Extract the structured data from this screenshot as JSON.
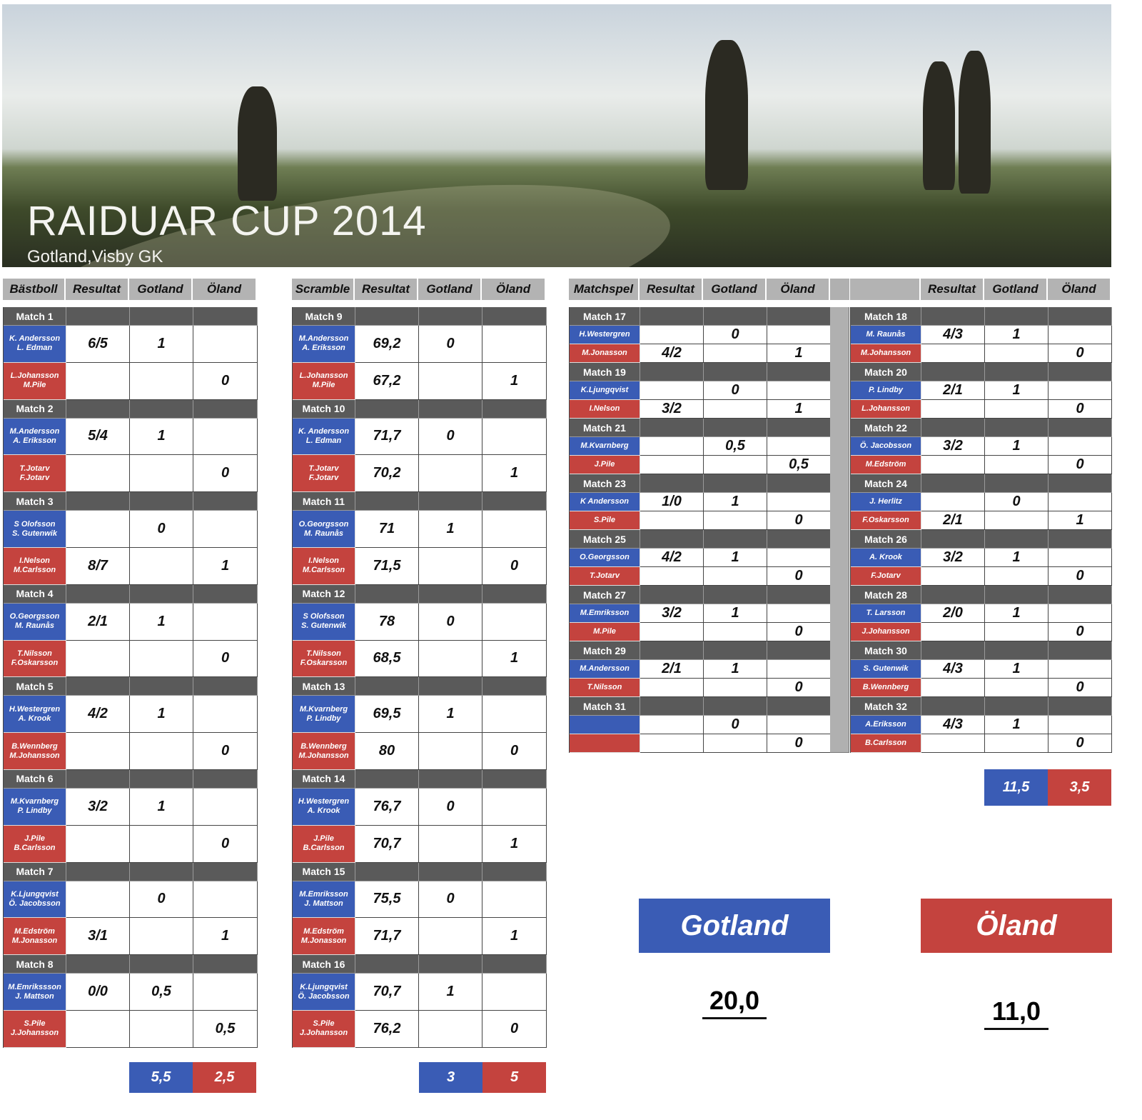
{
  "header": {
    "title": "RAIDUAR CUP 2014",
    "subtitle": "Gotland,Visby GK"
  },
  "colors": {
    "gotland": "#3a5cb5",
    "oland": "#c4433e",
    "match_header": "#5a5a5a",
    "column_header": "#b3b3b3"
  },
  "tables": [
    {
      "columns": [
        "Bästboll",
        "Resultat",
        "Gotland",
        "Öland"
      ],
      "totals": {
        "gotland": "5,5",
        "oland": "2,5"
      },
      "matches": [
        {
          "label": "Match 1",
          "blue": {
            "names": [
              "K. Andersson",
              "L. Edman"
            ],
            "res": "6/5",
            "g": "1",
            "o": ""
          },
          "red": {
            "names": [
              "L.Johansson",
              "M.Pile"
            ],
            "res": "",
            "g": "",
            "o": "0"
          }
        },
        {
          "label": "Match 2",
          "blue": {
            "names": [
              "M.Andersson",
              "A. Eriksson"
            ],
            "res": "5/4",
            "g": "1",
            "o": ""
          },
          "red": {
            "names": [
              "T.Jotarv",
              "F.Jotarv"
            ],
            "res": "",
            "g": "",
            "o": "0"
          }
        },
        {
          "label": "Match 3",
          "blue": {
            "names": [
              "S Olofsson",
              "S. Gutenwik"
            ],
            "res": "",
            "g": "0",
            "o": ""
          },
          "red": {
            "names": [
              "I.Nelson",
              "M.Carlsson"
            ],
            "res": "8/7",
            "g": "",
            "o": "1"
          }
        },
        {
          "label": "Match 4",
          "blue": {
            "names": [
              "O.Georgsson",
              "M. Raunås"
            ],
            "res": "2/1",
            "g": "1",
            "o": ""
          },
          "red": {
            "names": [
              "T.Nilsson",
              "F.Oskarsson"
            ],
            "res": "",
            "g": "",
            "o": "0"
          }
        },
        {
          "label": "Match 5",
          "blue": {
            "names": [
              "H.Westergren",
              "A. Krook"
            ],
            "res": "4/2",
            "g": "1",
            "o": ""
          },
          "red": {
            "names": [
              "B.Wennberg",
              "M.Johansson"
            ],
            "res": "",
            "g": "",
            "o": "0"
          }
        },
        {
          "label": "Match 6",
          "blue": {
            "names": [
              "M.Kvarnberg",
              "P. Lindby"
            ],
            "res": "3/2",
            "g": "1",
            "o": ""
          },
          "red": {
            "names": [
              "J.Pile",
              "B.Carlsson"
            ],
            "res": "",
            "g": "",
            "o": "0"
          }
        },
        {
          "label": "Match 7",
          "blue": {
            "names": [
              "K.Ljungqvist",
              "Ö. Jacobsson"
            ],
            "res": "",
            "g": "0",
            "o": ""
          },
          "red": {
            "names": [
              "M.Edström",
              "M.Jonasson"
            ],
            "res": "3/1",
            "g": "",
            "o": "1"
          }
        },
        {
          "label": "Match 8",
          "blue": {
            "names": [
              "M.Emrikssson",
              "J. Mattson"
            ],
            "res": "0/0",
            "g": "0,5",
            "o": ""
          },
          "red": {
            "names": [
              "S.Pile",
              "J.Johansson"
            ],
            "res": "",
            "g": "",
            "o": "0,5"
          }
        }
      ]
    },
    {
      "columns": [
        "Scramble",
        "Resultat",
        "Gotland",
        "Öland"
      ],
      "totals": {
        "gotland": "3",
        "oland": "5"
      },
      "matches": [
        {
          "label": "Match 9",
          "blue": {
            "names": [
              "M.Andersson",
              "A. Eriksson"
            ],
            "res": "69,2",
            "g": "0",
            "o": ""
          },
          "red": {
            "names": [
              "L.Johansson",
              "M.Pile"
            ],
            "res": "67,2",
            "g": "",
            "o": "1"
          }
        },
        {
          "label": "Match 10",
          "blue": {
            "names": [
              "K. Andersson",
              "L. Edman"
            ],
            "res": "71,7",
            "g": "0",
            "o": ""
          },
          "red": {
            "names": [
              "T.Jotarv",
              "F.Jotarv"
            ],
            "res": "70,2",
            "g": "",
            "o": "1"
          }
        },
        {
          "label": "Match 11",
          "blue": {
            "names": [
              "O.Georgsson",
              "M. Raunås"
            ],
            "res": "71",
            "g": "1",
            "o": ""
          },
          "red": {
            "names": [
              "I.Nelson",
              "M.Carlsson"
            ],
            "res": "71,5",
            "g": "",
            "o": "0"
          }
        },
        {
          "label": "Match 12",
          "blue": {
            "names": [
              "S Olofsson",
              "S. Gutenwik"
            ],
            "res": "78",
            "g": "0",
            "o": ""
          },
          "red": {
            "names": [
              "T.Nilsson",
              "F.Oskarsson"
            ],
            "res": "68,5",
            "g": "",
            "o": "1"
          }
        },
        {
          "label": "Match 13",
          "blue": {
            "names": [
              "M.Kvarnberg",
              "P. Lindby"
            ],
            "res": "69,5",
            "g": "1",
            "o": ""
          },
          "red": {
            "names": [
              "B.Wennberg",
              "M.Johansson"
            ],
            "res": "80",
            "g": "",
            "o": "0"
          }
        },
        {
          "label": "Match 14",
          "blue": {
            "names": [
              "H.Westergren",
              "A. Krook"
            ],
            "res": "76,7",
            "g": "0",
            "o": ""
          },
          "red": {
            "names": [
              "J.Pile",
              "B.Carlsson"
            ],
            "res": "70,7",
            "g": "",
            "o": "1"
          }
        },
        {
          "label": "Match 15",
          "blue": {
            "names": [
              "M.Emriksson",
              "J. Mattson"
            ],
            "res": "75,5",
            "g": "0",
            "o": ""
          },
          "red": {
            "names": [
              "M.Edström",
              "M.Jonasson"
            ],
            "res": "71,7",
            "g": "",
            "o": "1"
          }
        },
        {
          "label": "Match 16",
          "blue": {
            "names": [
              "K.Ljungqvist",
              "Ö. Jacobsson"
            ],
            "res": "70,7",
            "g": "1",
            "o": ""
          },
          "red": {
            "names": [
              "S.Pile",
              "J.Johansson"
            ],
            "res": "76,2",
            "g": "",
            "o": "0"
          }
        }
      ]
    },
    {
      "columns": [
        "Matchspel",
        "Resultat",
        "Gotland",
        "Öland"
      ],
      "matches": [
        {
          "label": "Match 17",
          "blue": {
            "names": [
              "H.Westergren"
            ],
            "res": "",
            "g": "0",
            "o": ""
          },
          "red": {
            "names": [
              "M.Jonasson"
            ],
            "res": "4/2",
            "g": "",
            "o": "1"
          }
        },
        {
          "label": "Match 19",
          "blue": {
            "names": [
              "K.Ljungqvist"
            ],
            "res": "",
            "g": "0",
            "o": ""
          },
          "red": {
            "names": [
              "I.Nelson"
            ],
            "res": "3/2",
            "g": "",
            "o": "1"
          }
        },
        {
          "label": "Match 21",
          "blue": {
            "names": [
              "M.Kvarnberg"
            ],
            "res": "",
            "g": "0,5",
            "o": ""
          },
          "red": {
            "names": [
              "J.Pile"
            ],
            "res": "",
            "g": "",
            "o": "0,5"
          }
        },
        {
          "label": "Match 23",
          "blue": {
            "names": [
              "K Andersson"
            ],
            "res": "1/0",
            "g": "1",
            "o": ""
          },
          "red": {
            "names": [
              "S.Pile"
            ],
            "res": "",
            "g": "",
            "o": "0"
          }
        },
        {
          "label": "Match 25",
          "blue": {
            "names": [
              "O.Georgsson"
            ],
            "res": "4/2",
            "g": "1",
            "o": ""
          },
          "red": {
            "names": [
              "T.Jotarv"
            ],
            "res": "",
            "g": "",
            "o": "0"
          }
        },
        {
          "label": "Match 27",
          "blue": {
            "names": [
              "M.Emriksson"
            ],
            "res": "3/2",
            "g": "1",
            "o": ""
          },
          "red": {
            "names": [
              "M.Pile"
            ],
            "res": "",
            "g": "",
            "o": "0"
          }
        },
        {
          "label": "Match 29",
          "blue": {
            "names": [
              "M.Andersson"
            ],
            "res": "2/1",
            "g": "1",
            "o": ""
          },
          "red": {
            "names": [
              "T.Nilsson"
            ],
            "res": "",
            "g": "",
            "o": "0"
          }
        },
        {
          "label": "Match 31",
          "blue": {
            "names": [
              ""
            ],
            "res": "",
            "g": "0",
            "o": ""
          },
          "red": {
            "names": [
              ""
            ],
            "res": "",
            "g": "",
            "o": "0"
          }
        }
      ]
    },
    {
      "columns": [
        "",
        "Resultat",
        "Gotland",
        "Öland"
      ],
      "totals": {
        "gotland": "11,5",
        "oland": "3,5"
      },
      "matches": [
        {
          "label": "Match 18",
          "blue": {
            "names": [
              "M. Raunås"
            ],
            "res": "4/3",
            "g": "1",
            "o": ""
          },
          "red": {
            "names": [
              "M.Johansson"
            ],
            "res": "",
            "g": "",
            "o": "0"
          }
        },
        {
          "label": "Match 20",
          "blue": {
            "names": [
              "P. Lindby"
            ],
            "res": "2/1",
            "g": "1",
            "o": ""
          },
          "red": {
            "names": [
              "L.Johansson"
            ],
            "res": "",
            "g": "",
            "o": "0"
          }
        },
        {
          "label": "Match 22",
          "blue": {
            "names": [
              "Ö. Jacobsson"
            ],
            "res": "3/2",
            "g": "1",
            "o": ""
          },
          "red": {
            "names": [
              "M.Edström"
            ],
            "res": "",
            "g": "",
            "o": "0"
          }
        },
        {
          "label": "Match 24",
          "blue": {
            "names": [
              "J. Herlitz"
            ],
            "res": "",
            "g": "0",
            "o": ""
          },
          "red": {
            "names": [
              "F.Oskarsson"
            ],
            "res": "2/1",
            "g": "",
            "o": "1"
          }
        },
        {
          "label": "Match 26",
          "blue": {
            "names": [
              "A. Krook"
            ],
            "res": "3/2",
            "g": "1",
            "o": ""
          },
          "red": {
            "names": [
              "F.Jotarv"
            ],
            "res": "",
            "g": "",
            "o": "0"
          }
        },
        {
          "label": "Match 28",
          "blue": {
            "names": [
              "T. Larsson"
            ],
            "res": "2/0",
            "g": "1",
            "o": ""
          },
          "red": {
            "names": [
              "J.Johansson"
            ],
            "res": "",
            "g": "",
            "o": "0"
          }
        },
        {
          "label": "Match 30",
          "blue": {
            "names": [
              "S. Gutenwik"
            ],
            "res": "4/3",
            "g": "1",
            "o": ""
          },
          "red": {
            "names": [
              "B.Wennberg"
            ],
            "res": "",
            "g": "",
            "o": "0"
          }
        },
        {
          "label": "Match 32",
          "blue": {
            "names": [
              "A.Eriksson"
            ],
            "res": "4/3",
            "g": "1",
            "o": ""
          },
          "red": {
            "names": [
              "B.Carlsson"
            ],
            "res": "",
            "g": "",
            "o": "0"
          }
        }
      ]
    }
  ],
  "final": {
    "gotland_label": "Gotland",
    "oland_label": "Öland",
    "gotland_score": "20,0",
    "oland_score": "11,0"
  }
}
